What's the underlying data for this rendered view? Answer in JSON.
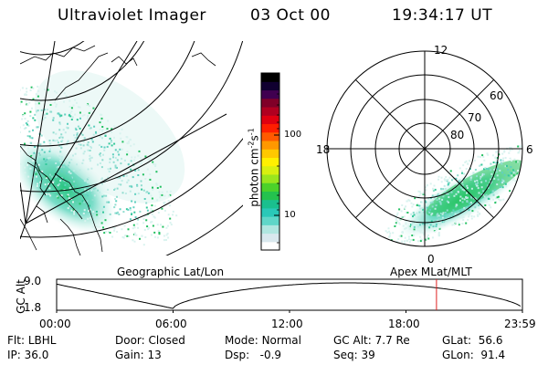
{
  "header": {
    "title": "Ultraviolet Imager",
    "date": "03 Oct 00",
    "time": "19:34:17 UT"
  },
  "colorbar": {
    "label_main": "photon cm",
    "label_exp": "-2",
    "label_mid": "s",
    "label_exp2": "-1",
    "tick_100": "100",
    "tick_10": "10",
    "colors": [
      "#ffffff",
      "#d9e8ee",
      "#b0e6e0",
      "#5fd6c8",
      "#2ac8b8",
      "#1abf8e",
      "#24c24e",
      "#4cd22a",
      "#9ae61e",
      "#d8f010",
      "#fff000",
      "#ffc800",
      "#ff9800",
      "#ff5a00",
      "#ff1e00",
      "#e00010",
      "#b00020",
      "#800028",
      "#400050",
      "#100030",
      "#000000"
    ]
  },
  "left_panel": {
    "caption": "Geographic Lat/Lon"
  },
  "right_panel": {
    "caption": "Apex MLat/MLT",
    "mlt_top": "12",
    "mlt_left": "18",
    "mlt_right": "6",
    "mlt_bottom": "0",
    "lat_60": "60",
    "lat_70": "70",
    "lat_80": "80"
  },
  "altitude_plot": {
    "ylabel": "GC Alt",
    "ytick_top": "9.0",
    "ytick_bottom": "1.8",
    "xticks": [
      "00:00",
      "06:00",
      "12:00",
      "18:00",
      "23:59"
    ],
    "current_time_marker_hours": 19.57
  },
  "info": {
    "flt_label": "Flt:",
    "flt_value": "LBHL",
    "door_label": "Door:",
    "door_value": "Closed",
    "mode_label": "Mode:",
    "mode_value": "Normal",
    "gcalt_label": "GC Alt:",
    "gcalt_value": "7.7 Re",
    "glat_label": "GLat:",
    "glat_value": "56.6",
    "ip_label": "IP:",
    "ip_value": "36.0",
    "gain_label": "Gain:",
    "gain_value": "13",
    "dsp_label": "Dsp:",
    "dsp_value": "-0.9",
    "seq_label": "Seq:",
    "seq_value": "39",
    "glon_label": "GLon:",
    "glon_value": "91.4"
  }
}
